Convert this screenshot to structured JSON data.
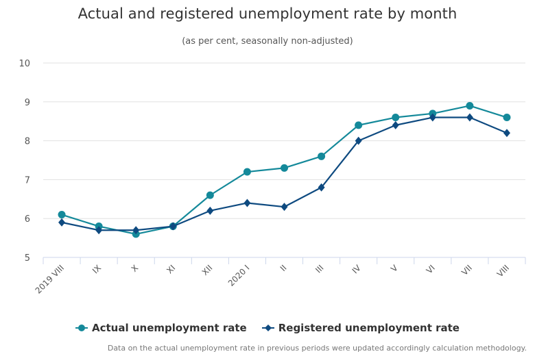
{
  "chart_data": {
    "type": "line",
    "title": "Actual and registered unemployment rate by month",
    "subtitle": "(as per cent, seasonally non-adjusted)",
    "categories": [
      "2019 VIII",
      "IX",
      "X",
      "XI",
      "XII",
      "2020 I",
      "II",
      "III",
      "IV",
      "V",
      "VI",
      "VII",
      "VIII"
    ],
    "series": [
      {
        "name": "Actual unemployment rate",
        "color": "#14899a",
        "marker": "circle",
        "values": [
          6.1,
          5.8,
          5.6,
          5.8,
          6.6,
          7.2,
          7.3,
          7.6,
          8.4,
          8.6,
          8.7,
          8.9,
          8.6
        ]
      },
      {
        "name": "Registered unemployment rate",
        "color": "#0e4a80",
        "marker": "diamond",
        "values": [
          5.9,
          5.7,
          5.7,
          5.8,
          6.2,
          6.4,
          6.3,
          6.8,
          8.0,
          8.4,
          8.6,
          8.6,
          8.2
        ]
      }
    ],
    "xlabel": "",
    "ylabel": "",
    "ylim": [
      5,
      10
    ],
    "yticks": [
      5,
      6,
      7,
      8,
      9,
      10
    ],
    "grid": true,
    "legend_position": "bottom-center",
    "footnote": "Data on the actual unemployment rate in previous periods were updated accordingly calculation methodology."
  }
}
